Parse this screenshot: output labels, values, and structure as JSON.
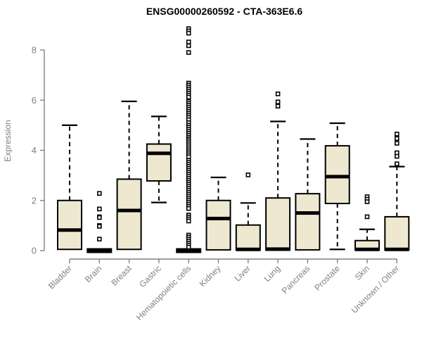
{
  "title": "ENSG00000260592 - CTA-363E6.6",
  "chart_data": {
    "type": "boxplot",
    "title": "ENSG00000260592 - CTA-363E6.6",
    "xlabel": "",
    "ylabel": "Expression",
    "ylim": [
      0,
      9
    ],
    "yticks": [
      0,
      2,
      4,
      6,
      8
    ],
    "grid": false,
    "legend": "none",
    "colors": {
      "box_fill": "#EEE8D1",
      "box_stroke": "#000000",
      "median": "#000000",
      "whisker": "#000000",
      "outlier_stroke": "#000000",
      "outlier_fill": "#ffffff",
      "axis": "#808080",
      "tick_label": "#808080",
      "title": "#000000"
    },
    "categories": [
      "Bladder",
      "Brain",
      "Breast",
      "Gastric",
      "Hematopoietic cells",
      "Kidney",
      "Liver",
      "Lung",
      "Pancreas",
      "Prostate",
      "Skin",
      "Unknown / Other"
    ],
    "series": [
      {
        "label": "Bladder",
        "whisker_low": 0.05,
        "q1": 0.05,
        "median": 0.82,
        "q3": 2.0,
        "whisker_high": 5.0,
        "outliers": []
      },
      {
        "label": "Brain",
        "whisker_low": 0,
        "q1": 0,
        "median": 0,
        "q3": 0,
        "whisker_high": 0,
        "outliers": [
          2.28,
          1.66,
          1.35,
          1.32,
          1.0,
          0.97,
          0.46
        ]
      },
      {
        "label": "Breast",
        "whisker_low": 0.05,
        "q1": 0.05,
        "median": 1.6,
        "q3": 2.85,
        "whisker_high": 5.95,
        "outliers": []
      },
      {
        "label": "Gastric",
        "whisker_low": 1.92,
        "q1": 2.78,
        "median": 3.88,
        "q3": 4.25,
        "whisker_high": 5.35,
        "outliers": []
      },
      {
        "label": "Hematopoietic cells",
        "whisker_low": 0,
        "q1": 0,
        "median": 0,
        "q3": 0,
        "whisker_high": 0,
        "outliers": [
          8.85,
          8.76,
          8.67,
          8.32,
          8.17,
          7.9,
          6.68,
          6.6,
          6.52,
          6.44,
          6.36,
          6.28,
          6.2,
          6.12,
          5.95,
          5.87,
          5.79,
          5.71,
          5.63,
          5.55,
          5.47,
          5.39,
          5.31,
          5.22,
          5.1,
          5.0,
          4.92,
          4.84,
          4.76,
          4.68,
          4.6,
          4.52,
          4.45,
          4.38,
          4.3,
          4.22,
          4.14,
          4.06,
          3.98,
          3.9,
          3.82,
          3.74,
          3.6,
          3.52,
          3.44,
          3.36,
          3.28,
          3.2,
          3.12,
          3.04,
          2.96,
          2.88,
          2.8,
          2.72,
          2.64,
          2.56,
          2.48,
          2.4,
          2.32,
          2.24,
          2.16,
          2.08,
          2.0,
          1.92,
          1.84,
          1.76,
          1.68,
          1.42,
          1.34,
          1.26,
          1.18,
          0.62,
          0.54,
          0.46,
          0.38,
          0.3,
          0.22,
          0.14
        ]
      },
      {
        "label": "Kidney",
        "whisker_low": 0.03,
        "q1": 0.03,
        "median": 1.28,
        "q3": 2.0,
        "whisker_high": 2.92,
        "outliers": []
      },
      {
        "label": "Liver",
        "whisker_low": 0.02,
        "q1": 0.02,
        "median": 0.05,
        "q3": 1.02,
        "whisker_high": 1.9,
        "outliers": [
          3.02
        ]
      },
      {
        "label": "Lung",
        "whisker_low": 0.02,
        "q1": 0.02,
        "median": 0.06,
        "q3": 2.1,
        "whisker_high": 5.15,
        "outliers": [
          6.25,
          5.93,
          5.76
        ]
      },
      {
        "label": "Pancreas",
        "whisker_low": 0.03,
        "q1": 0.03,
        "median": 1.5,
        "q3": 2.27,
        "whisker_high": 4.45,
        "outliers": []
      },
      {
        "label": "Prostate",
        "whisker_low": 0.05,
        "q1": 1.88,
        "median": 2.95,
        "q3": 4.18,
        "whisker_high": 5.08,
        "outliers": []
      },
      {
        "label": "Skin",
        "whisker_low": 0.02,
        "q1": 0.02,
        "median": 0.05,
        "q3": 0.4,
        "whisker_high": 0.85,
        "outliers": [
          2.15,
          2.05,
          1.95,
          1.35
        ]
      },
      {
        "label": "Unknown / Other",
        "whisker_low": 0.02,
        "q1": 0.02,
        "median": 0.05,
        "q3": 1.35,
        "whisker_high": 3.35,
        "outliers": [
          4.65,
          4.47,
          4.28,
          3.9,
          3.76,
          3.46
        ]
      }
    ]
  }
}
